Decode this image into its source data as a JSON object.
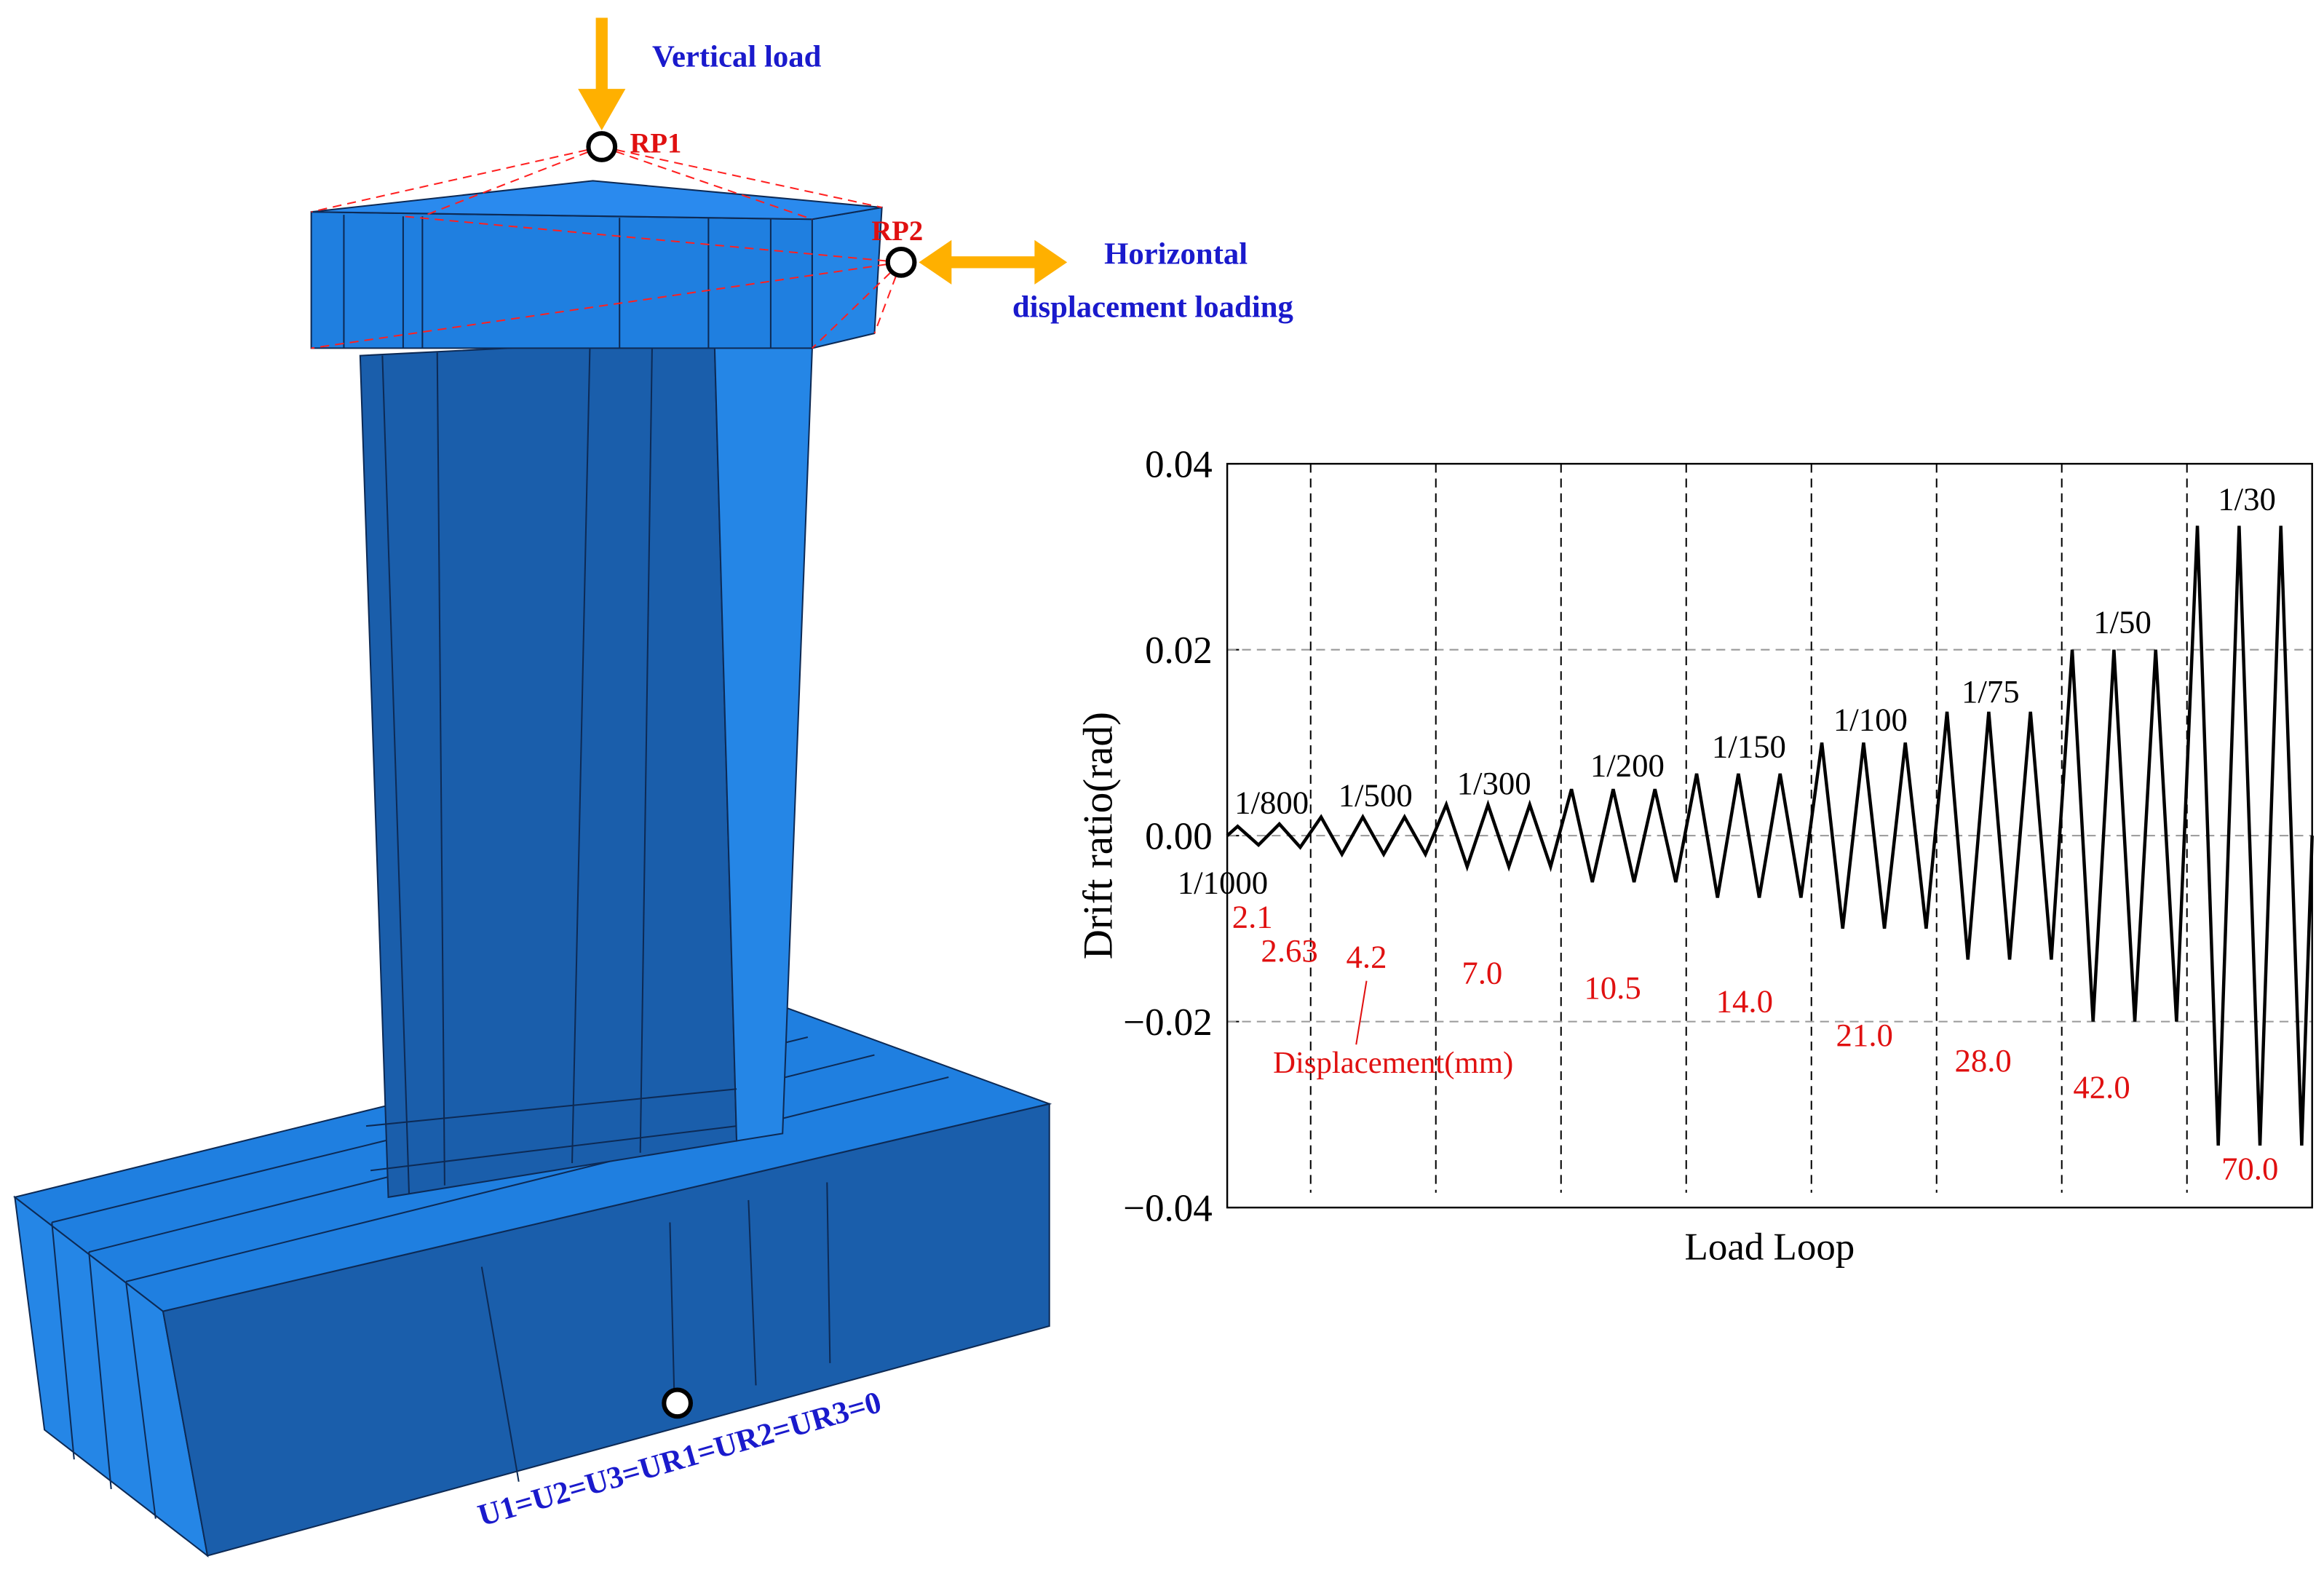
{
  "diagram": {
    "vertical_load": "Vertical load",
    "rp1": "RP1",
    "rp2": "RP2",
    "horizontal_label": [
      "Horizontal",
      "displacement loading"
    ],
    "boundary": "U1=U2=U3=UR1=UR2=UR3=0"
  },
  "chart_data": {
    "type": "line",
    "ylabel": "Drift ratio(rad)",
    "xlabel": "Load Loop",
    "x": [
      0,
      0.25,
      0.75,
      1.25,
      1.75,
      2.25,
      2.75,
      3.25,
      3.75,
      4.25,
      4.75,
      5.25,
      5.75,
      6.25,
      6.75,
      7.25,
      7.75,
      8.25,
      8.75,
      9.25,
      9.75,
      10.25,
      10.75,
      11.25,
      11.75,
      12.25,
      12.75,
      13.25,
      13.75,
      14.25,
      14.75,
      15.25,
      15.75,
      16.25,
      16.75,
      17.25,
      17.75,
      18.25,
      18.75,
      19.25,
      19.75,
      20.25,
      20.75,
      21.25,
      21.75,
      22.25,
      22.75,
      23.25,
      23.75,
      24.25,
      24.75,
      25.25,
      25.75,
      26
    ],
    "series": [
      {
        "color": "#000000",
        "values": [
          0,
          0.001,
          -0.001,
          0.00125,
          -0.00125,
          0.002,
          -0.002,
          0.002,
          -0.002,
          0.002,
          -0.002,
          0.00333,
          -0.00333,
          0.00333,
          -0.00333,
          0.00333,
          -0.00333,
          0.005,
          -0.005,
          0.005,
          -0.005,
          0.005,
          -0.005,
          0.00667,
          -0.00667,
          0.00667,
          -0.00667,
          0.00667,
          -0.00667,
          0.01,
          -0.01,
          0.01,
          -0.01,
          0.01,
          -0.01,
          0.01333,
          -0.01333,
          0.01333,
          -0.01333,
          0.01333,
          -0.01333,
          0.02,
          -0.02,
          0.02,
          -0.02,
          0.02,
          -0.02,
          0.03333,
          -0.03333,
          0.03333,
          -0.03333,
          0.03333,
          -0.03333,
          0
        ]
      }
    ],
    "xlim": [
      0,
      26
    ],
    "ylim": [
      -0.04,
      0.04
    ],
    "yticks": [
      {
        "value": -0.04,
        "label": "−0.04"
      },
      {
        "value": -0.02,
        "label": "−0.02"
      },
      {
        "value": 0,
        "label": "0.00"
      },
      0.02,
      0.04
    ],
    "grid": true,
    "vlines": [
      2,
      5,
      8,
      11,
      14,
      17,
      20,
      23
    ],
    "level_labels": [
      "1/1000",
      "1/800",
      "1/500",
      "1/300",
      "1/200",
      "1/150",
      "1/100",
      "1/75",
      "1/50",
      "1/30"
    ],
    "displacement_labels": [
      "2.1",
      "2.63",
      "4.2",
      "7.0",
      "10.5",
      "14.0",
      "21.0",
      "28.0",
      "42.0",
      "70.0"
    ],
    "displacement_title": "Displacement(mm)"
  }
}
